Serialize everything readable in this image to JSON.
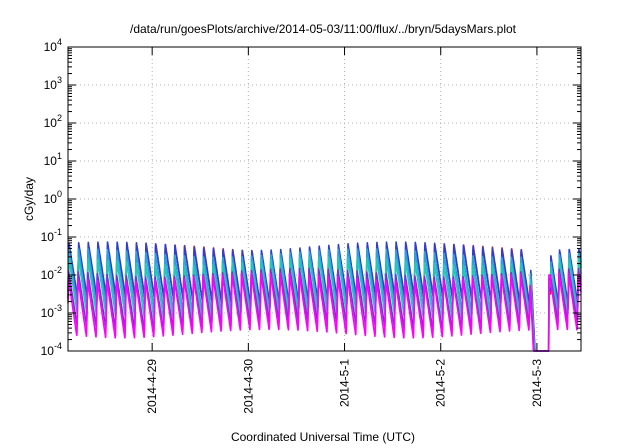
{
  "chart_data": {
    "type": "line",
    "title": "/data/run/goesPlots/archive/2014-05-03/11:00/flux/../bryn/5daysMars.plot",
    "xlabel": "Coordinated Universal Time (UTC)",
    "ylabel": "cGy/day",
    "yscale": "log",
    "ylim": [
      0.0001,
      10000
    ],
    "yticks": [
      {
        "base": "10",
        "exp": "-4",
        "value": 0.0001
      },
      {
        "base": "10",
        "exp": "-3",
        "value": 0.001
      },
      {
        "base": "10",
        "exp": "-2",
        "value": 0.01
      },
      {
        "base": "10",
        "exp": "-1",
        "value": 0.1
      },
      {
        "base": "10",
        "exp": "0",
        "value": 1
      },
      {
        "base": "10",
        "exp": "1",
        "value": 10
      },
      {
        "base": "10",
        "exp": "2",
        "value": 100
      },
      {
        "base": "10",
        "exp": "3",
        "value": 1000
      },
      {
        "base": "10",
        "exp": "4",
        "value": 10000
      }
    ],
    "xlim": [
      "2014-04-28T03:00",
      "2014-05-03T11:00"
    ],
    "xticks": [
      {
        "label": "2014-4-29",
        "value": "2014-04-29T00:00"
      },
      {
        "label": "2014-4-30",
        "value": "2014-04-30T00:00"
      },
      {
        "label": "2014-5-1",
        "value": "2014-05-01T00:00"
      },
      {
        "label": "2014-5-2",
        "value": "2014-05-02T00:00"
      },
      {
        "label": "2014-5-3",
        "value": "2014-05-03T00:00"
      }
    ],
    "grid": true,
    "legend": "none",
    "pattern": {
      "description": "sawtooth oscillation, sharp rise then slow decay, 10 cycles per day",
      "cycles_per_day": 10,
      "dropout_start": "2014-05-03T00:00",
      "dropout_end": "2014-05-03T03:00"
    },
    "series": [
      {
        "color": "#d62728",
        "peak": 0.055,
        "trough": 0.0018
      },
      {
        "color": "#2c3fd4",
        "peak": 0.06,
        "trough": 0.0022
      },
      {
        "color": "#2aa4d8",
        "peak": 0.04,
        "trough": 0.0012
      },
      {
        "color": "#20c8b8",
        "peak": 0.025,
        "trough": 0.0008
      },
      {
        "color": "#7a2fd0",
        "peak": 0.012,
        "trough": 0.00045
      },
      {
        "color": "#ff00ff",
        "peak": 0.009,
        "trough": 0.00028
      }
    ]
  }
}
